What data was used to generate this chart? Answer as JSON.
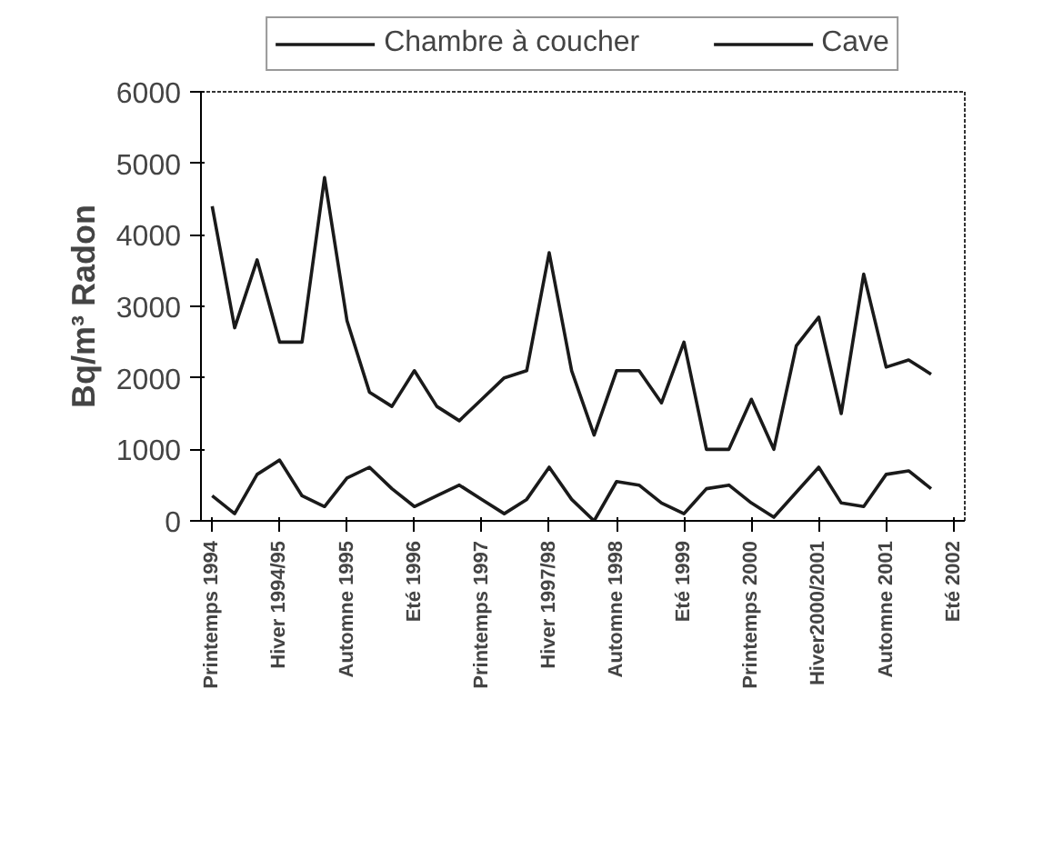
{
  "chart_data": {
    "type": "line",
    "ylabel": "Bq/m³ Radon",
    "categories": [
      "Printemps 1994",
      null,
      null,
      "Hiver 1994/95",
      null,
      null,
      "Automne 1995",
      null,
      null,
      "Eté 1996",
      null,
      null,
      "Printemps 1997",
      null,
      null,
      "Hiver 1997/98",
      null,
      null,
      "Automne 1998",
      null,
      null,
      "Eté 1999",
      null,
      null,
      "Printemps 2000",
      null,
      null,
      "Hiver2000/2001",
      null,
      null,
      "Automne 2001",
      null,
      null,
      "Eté 2002"
    ],
    "series": [
      {
        "name": "Chambre à coucher",
        "color": "#1a1a1a",
        "values": [
          350,
          100,
          650,
          850,
          350,
          200,
          600,
          750,
          450,
          200,
          350,
          500,
          300,
          100,
          300,
          750,
          300,
          0,
          550,
          500,
          250,
          100,
          450,
          500,
          250,
          50,
          400,
          750,
          250,
          200,
          650,
          700,
          450,
          null
        ]
      },
      {
        "name": "Cave",
        "color": "#1a1a1a",
        "values": [
          4400,
          2700,
          3650,
          2500,
          2500,
          4800,
          2800,
          1800,
          1600,
          2100,
          1600,
          1400,
          1700,
          2000,
          2100,
          3750,
          2100,
          1200,
          2100,
          2100,
          1650,
          2500,
          1000,
          1000,
          1700,
          1000,
          2450,
          2850,
          1500,
          3450,
          2150,
          2250,
          2050,
          null
        ]
      }
    ],
    "ylim": [
      0,
      6000
    ],
    "yticks": [
      0,
      1000,
      2000,
      3000,
      4000,
      5000,
      6000
    ],
    "grid": false,
    "legend": "top",
    "marker": "none",
    "line_style": "solid"
  }
}
